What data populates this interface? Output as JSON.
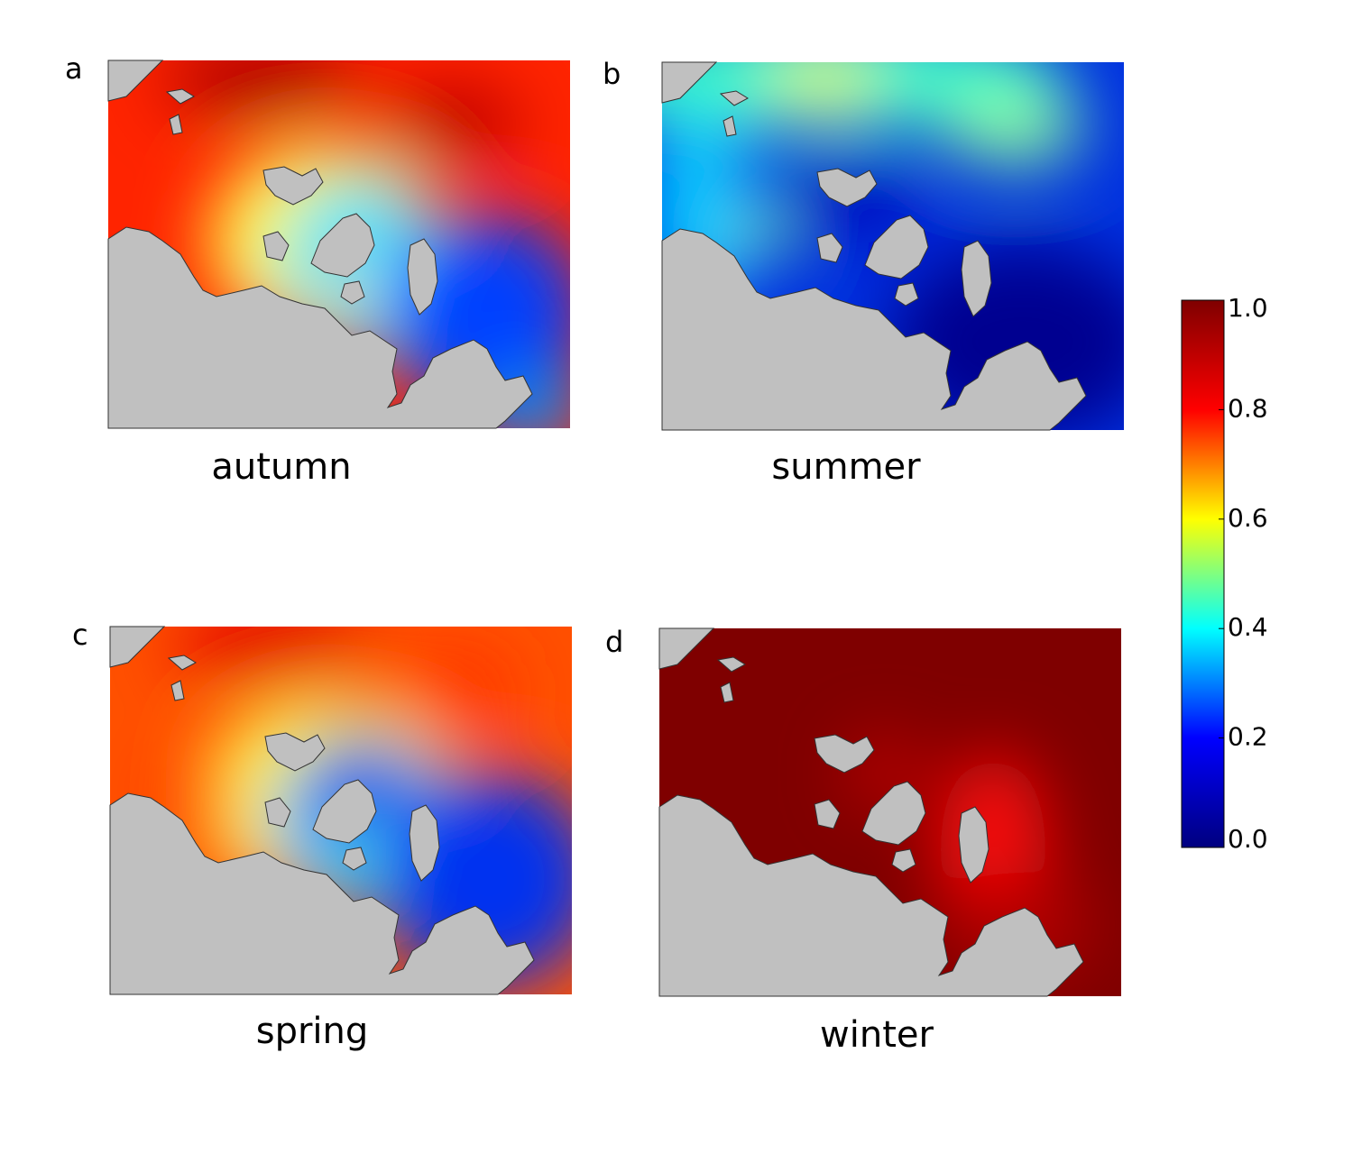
{
  "panels": [
    {
      "letter": "a",
      "label": "autumn"
    },
    {
      "letter": "b",
      "label": "summer"
    },
    {
      "letter": "c",
      "label": "spring"
    },
    {
      "letter": "d",
      "label": "winter"
    }
  ],
  "colorbar": {
    "lim": [
      0,
      1
    ],
    "ticks": [
      {
        "value": 0,
        "label": "0.0"
      },
      0.2,
      0.4,
      0.6,
      0.8,
      {
        "value": 1,
        "label": "1.0"
      }
    ],
    "colors": [
      "#00007f",
      "#0000ff",
      "#00ffff",
      "#ffff00",
      "#ff0000",
      "#7f0000"
    ]
  }
}
